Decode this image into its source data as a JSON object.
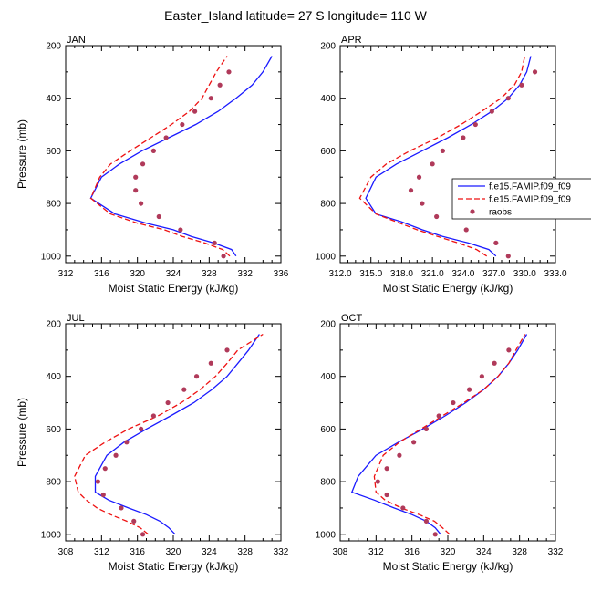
{
  "page": {
    "title": "Easter_Island  latitude= 27 S longitude= 110 W"
  },
  "legend": {
    "entries": [
      {
        "label": "f.e15.FAMIP.f09_f09",
        "color": "#1a1aff",
        "dash": "solid"
      },
      {
        "label": "f.e15.FAMIP.f09_f09",
        "color": "#ee1111",
        "dash": "dashed"
      },
      {
        "label": "raobs",
        "color": "#b03a5a",
        "dash": "marker"
      }
    ]
  },
  "chart_data": [
    {
      "type": "line",
      "panel_label": "JAN",
      "xlabel": "Moist Static Energy (kJ/kg)",
      "ylabel": "Pressure (mb)",
      "xlim": [
        312,
        336
      ],
      "ylim": [
        1025,
        200
      ],
      "xticks": [
        "312",
        "316",
        "320",
        "324",
        "328",
        "332",
        "336"
      ],
      "yticks": [
        "200",
        "400",
        "600",
        "800",
        "1000"
      ],
      "series": [
        {
          "style": "solid",
          "points": [
            [
              331,
              1000
            ],
            [
              330.5,
              975
            ],
            [
              328.5,
              950
            ],
            [
              326,
              925
            ],
            [
              324,
              900
            ],
            [
              321,
              875
            ],
            [
              317.5,
              840
            ],
            [
              314.8,
              780
            ],
            [
              316,
              700
            ],
            [
              318,
              650
            ],
            [
              320.5,
              600
            ],
            [
              323.5,
              550
            ],
            [
              326.5,
              500
            ],
            [
              329,
              450
            ],
            [
              331,
              400
            ],
            [
              332.8,
              350
            ],
            [
              334,
              300
            ],
            [
              335,
              240
            ]
          ]
        },
        {
          "style": "dashed",
          "points": [
            [
              330.3,
              1000
            ],
            [
              329.5,
              975
            ],
            [
              327.5,
              950
            ],
            [
              325,
              925
            ],
            [
              323,
              900
            ],
            [
              320,
              875
            ],
            [
              317,
              840
            ],
            [
              314.8,
              780
            ],
            [
              315.8,
              700
            ],
            [
              317,
              650
            ],
            [
              319.2,
              600
            ],
            [
              321.5,
              550
            ],
            [
              323.8,
              500
            ],
            [
              325.8,
              450
            ],
            [
              327.2,
              400
            ],
            [
              328,
              350
            ],
            [
              328.8,
              300
            ],
            [
              330,
              240
            ]
          ]
        },
        {
          "style": "marker",
          "points": [
            [
              329.6,
              1000
            ],
            [
              328.6,
              950
            ],
            [
              324.8,
              900
            ],
            [
              322.4,
              850
            ],
            [
              320.4,
              800
            ],
            [
              319.8,
              750
            ],
            [
              319.8,
              700
            ],
            [
              320.6,
              650
            ],
            [
              321.8,
              600
            ],
            [
              323.2,
              550
            ],
            [
              325,
              500
            ],
            [
              326.4,
              450
            ],
            [
              328.2,
              400
            ],
            [
              329.2,
              350
            ],
            [
              330.2,
              300
            ]
          ]
        }
      ]
    },
    {
      "type": "line",
      "panel_label": "APR",
      "xlabel": "Moist Static Energy (kJ/kg)",
      "ylabel": "",
      "xlim": [
        312,
        333
      ],
      "ylim": [
        1025,
        200
      ],
      "xticks": [
        "312.0",
        "315.0",
        "318.0",
        "321.0",
        "324.0",
        "327.0",
        "330.0",
        "333.0"
      ],
      "yticks": [
        "200",
        "400",
        "600",
        "800",
        "1000"
      ],
      "series": [
        {
          "style": "solid",
          "points": [
            [
              327.2,
              1000
            ],
            [
              326.5,
              975
            ],
            [
              324.5,
              950
            ],
            [
              322,
              925
            ],
            [
              320,
              900
            ],
            [
              318,
              870
            ],
            [
              315.5,
              840
            ],
            [
              314.5,
              780
            ],
            [
              315.5,
              700
            ],
            [
              317.5,
              650
            ],
            [
              320,
              600
            ],
            [
              322.5,
              550
            ],
            [
              324.8,
              500
            ],
            [
              326.8,
              450
            ],
            [
              328.4,
              400
            ],
            [
              329.5,
              350
            ],
            [
              330.2,
              300
            ],
            [
              330.6,
              240
            ]
          ]
        },
        {
          "style": "dashed",
          "points": [
            [
              326.3,
              1000
            ],
            [
              325.3,
              975
            ],
            [
              323.5,
              950
            ],
            [
              321.5,
              925
            ],
            [
              319.5,
              900
            ],
            [
              317.5,
              870
            ],
            [
              315.5,
              840
            ],
            [
              313.9,
              780
            ],
            [
              315,
              700
            ],
            [
              316.5,
              650
            ],
            [
              318.8,
              600
            ],
            [
              321.5,
              550
            ],
            [
              323.8,
              500
            ],
            [
              325.8,
              450
            ],
            [
              327.7,
              400
            ],
            [
              329,
              350
            ],
            [
              329.7,
              300
            ],
            [
              330,
              240
            ]
          ]
        },
        {
          "style": "marker",
          "points": [
            [
              328.4,
              1000
            ],
            [
              327.2,
              950
            ],
            [
              324.3,
              900
            ],
            [
              321.4,
              850
            ],
            [
              320,
              800
            ],
            [
              318.9,
              750
            ],
            [
              319.7,
              700
            ],
            [
              321,
              650
            ],
            [
              322,
              600
            ],
            [
              324,
              550
            ],
            [
              325.2,
              500
            ],
            [
              326.8,
              450
            ],
            [
              328.4,
              400
            ],
            [
              329.7,
              350
            ],
            [
              331,
              300
            ]
          ]
        }
      ]
    },
    {
      "type": "line",
      "panel_label": "JUL",
      "xlabel": "Moist Static Energy (kJ/kg)",
      "ylabel": "Pressure (mb)",
      "xlim": [
        308,
        332
      ],
      "ylim": [
        1025,
        200
      ],
      "xticks": [
        "308",
        "312",
        "316",
        "320",
        "324",
        "328",
        "332"
      ],
      "yticks": [
        "200",
        "400",
        "600",
        "800",
        "1000"
      ],
      "series": [
        {
          "style": "solid",
          "points": [
            [
              320.2,
              1000
            ],
            [
              319.5,
              975
            ],
            [
              318.5,
              950
            ],
            [
              317,
              925
            ],
            [
              315,
              900
            ],
            [
              312.8,
              870
            ],
            [
              311.3,
              840
            ],
            [
              311.3,
              780
            ],
            [
              312.6,
              700
            ],
            [
              314.5,
              650
            ],
            [
              317,
              600
            ],
            [
              319.7,
              550
            ],
            [
              322.3,
              500
            ],
            [
              324.3,
              450
            ],
            [
              326,
              400
            ],
            [
              327.2,
              350
            ],
            [
              328.4,
              300
            ],
            [
              329.6,
              240
            ]
          ]
        },
        {
          "style": "dashed",
          "points": [
            [
              317.2,
              1000
            ],
            [
              316.3,
              975
            ],
            [
              314.8,
              950
            ],
            [
              313,
              925
            ],
            [
              311.5,
              900
            ],
            [
              310.3,
              870
            ],
            [
              309.4,
              840
            ],
            [
              309,
              780
            ],
            [
              310.2,
              700
            ],
            [
              312.4,
              650
            ],
            [
              315,
              600
            ],
            [
              318.3,
              550
            ],
            [
              320.9,
              500
            ],
            [
              323,
              450
            ],
            [
              324.7,
              400
            ],
            [
              326,
              350
            ],
            [
              327.2,
              300
            ],
            [
              330,
              240
            ]
          ]
        },
        {
          "style": "marker",
          "points": [
            [
              316.6,
              1000
            ],
            [
              315.6,
              950
            ],
            [
              314.2,
              900
            ],
            [
              312.2,
              850
            ],
            [
              311.6,
              800
            ],
            [
              312.4,
              750
            ],
            [
              313.6,
              700
            ],
            [
              314.8,
              650
            ],
            [
              316.4,
              600
            ],
            [
              317.8,
              550
            ],
            [
              319.4,
              500
            ],
            [
              321.2,
              450
            ],
            [
              322.6,
              400
            ],
            [
              324.2,
              350
            ],
            [
              326,
              300
            ]
          ]
        }
      ]
    },
    {
      "type": "line",
      "panel_label": "OCT",
      "xlabel": "Moist Static Energy (kJ/kg)",
      "ylabel": "",
      "xlim": [
        308,
        332
      ],
      "ylim": [
        1025,
        200
      ],
      "xticks": [
        "308",
        "312",
        "316",
        "320",
        "324",
        "328",
        "332"
      ],
      "yticks": [
        "200",
        "400",
        "600",
        "800",
        "1000"
      ],
      "series": [
        {
          "style": "solid",
          "points": [
            [
              319.2,
              1000
            ],
            [
              318.6,
              975
            ],
            [
              317.6,
              950
            ],
            [
              316,
              925
            ],
            [
              314,
              900
            ],
            [
              311.8,
              870
            ],
            [
              309.3,
              840
            ],
            [
              310,
              780
            ],
            [
              312,
              700
            ],
            [
              314.5,
              650
            ],
            [
              317.2,
              600
            ],
            [
              319.7,
              550
            ],
            [
              322,
              500
            ],
            [
              324,
              450
            ],
            [
              325.6,
              400
            ],
            [
              326.8,
              350
            ],
            [
              327.8,
              300
            ],
            [
              328.8,
              240
            ]
          ]
        },
        {
          "style": "dashed",
          "points": [
            [
              320.2,
              1000
            ],
            [
              319.4,
              975
            ],
            [
              318.5,
              950
            ],
            [
              316.8,
              925
            ],
            [
              314.8,
              900
            ],
            [
              313,
              870
            ],
            [
              312,
              840
            ],
            [
              311.8,
              780
            ],
            [
              312.8,
              700
            ],
            [
              314.6,
              650
            ],
            [
              317,
              600
            ],
            [
              319.4,
              550
            ],
            [
              321.8,
              500
            ],
            [
              324,
              450
            ],
            [
              325.6,
              400
            ],
            [
              326.8,
              350
            ],
            [
              327.6,
              300
            ],
            [
              328.6,
              240
            ]
          ]
        },
        {
          "style": "marker",
          "points": [
            [
              318.6,
              1000
            ],
            [
              317.6,
              950
            ],
            [
              315,
              900
            ],
            [
              313.2,
              850
            ],
            [
              312.2,
              800
            ],
            [
              313.2,
              750
            ],
            [
              314.6,
              700
            ],
            [
              316.2,
              650
            ],
            [
              317.6,
              600
            ],
            [
              319,
              550
            ],
            [
              320.6,
              500
            ],
            [
              322.4,
              450
            ],
            [
              323.8,
              400
            ],
            [
              325.2,
              350
            ],
            [
              326.8,
              300
            ]
          ]
        }
      ]
    }
  ]
}
